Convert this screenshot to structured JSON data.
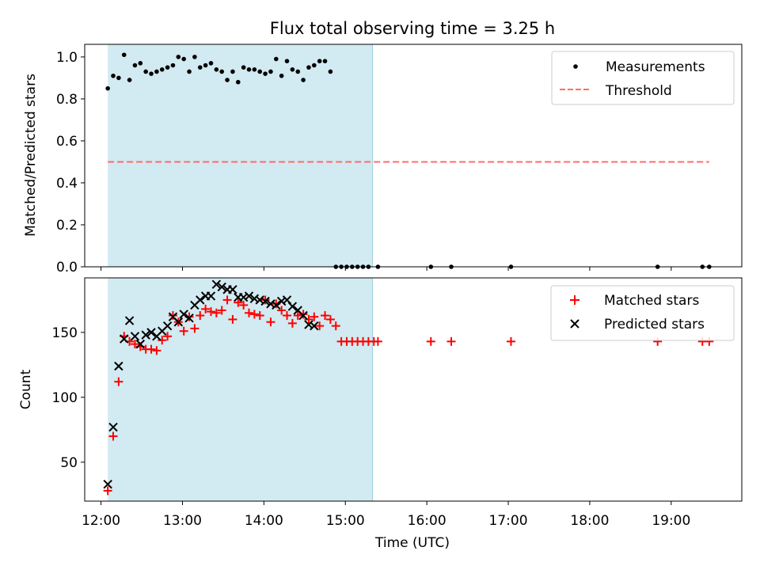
{
  "chart_data": {
    "title": "Flux total observing time = 3.25 h",
    "xlabel": "Time (UTC)",
    "x_ticks": [
      "12:00",
      "13:00",
      "14:00",
      "15:00",
      "16:00",
      "17:00",
      "18:00",
      "19:00"
    ],
    "x_range": [
      "11:48",
      "19:52"
    ],
    "shaded_window": {
      "start": "12:05",
      "end": "15:20",
      "color": "#add8e6"
    },
    "panels": [
      {
        "type": "scatter",
        "ylabel": "Matched/Predicted stars",
        "ylim": [
          0,
          1.06
        ],
        "y_ticks": [
          0.0,
          0.2,
          0.4,
          0.6,
          0.8,
          1.0
        ],
        "y_tick_labels": [
          "0.0",
          "0.2",
          "0.4",
          "0.6",
          "0.8",
          "1.0"
        ],
        "legend_position": "upper right",
        "series": [
          {
            "name": "Measurements",
            "marker": "dot",
            "color": "#000000",
            "x": [
              "12:05",
              "12:09",
              "12:13",
              "12:17",
              "12:21",
              "12:25",
              "12:29",
              "12:33",
              "12:37",
              "12:41",
              "12:45",
              "12:49",
              "12:53",
              "12:57",
              "13:01",
              "13:05",
              "13:09",
              "13:13",
              "13:17",
              "13:21",
              "13:25",
              "13:29",
              "13:33",
              "13:37",
              "13:41",
              "13:45",
              "13:49",
              "13:53",
              "13:57",
              "14:01",
              "14:05",
              "14:09",
              "14:13",
              "14:17",
              "14:21",
              "14:25",
              "14:29",
              "14:33",
              "14:37",
              "14:41",
              "14:45",
              "14:49",
              "14:53",
              "14:57",
              "15:01",
              "15:05",
              "15:09",
              "15:13",
              "15:17",
              "15:24",
              "16:03",
              "16:18",
              "17:02",
              "18:50",
              "19:23",
              "19:28"
            ],
            "y": [
              0.85,
              0.91,
              0.9,
              1.01,
              0.89,
              0.96,
              0.97,
              0.93,
              0.92,
              0.93,
              0.94,
              0.95,
              0.96,
              1.0,
              0.99,
              0.93,
              1.0,
              0.95,
              0.96,
              0.97,
              0.94,
              0.93,
              0.89,
              0.93,
              0.88,
              0.95,
              0.94,
              0.94,
              0.93,
              0.92,
              0.93,
              0.99,
              0.91,
              0.98,
              0.94,
              0.93,
              0.89,
              0.95,
              0.96,
              0.98,
              0.98,
              0.93,
              0,
              0,
              0,
              0,
              0,
              0,
              0,
              0,
              0,
              0,
              0,
              0,
              0,
              0
            ]
          },
          {
            "name": "Threshold",
            "marker": "dashed-line",
            "color": "#ff6b6b",
            "x": [
              "12:05",
              "19:28"
            ],
            "y": [
              0.5,
              0.5
            ]
          }
        ]
      },
      {
        "type": "scatter",
        "ylabel": "Count",
        "ylim": [
          20,
          192
        ],
        "y_ticks": [
          50,
          100,
          150
        ],
        "y_tick_labels": [
          "50",
          "100",
          "150"
        ],
        "legend_position": "upper right",
        "series": [
          {
            "name": "Matched stars",
            "marker": "plus",
            "color": "#ff0000",
            "x": [
              "12:05",
              "12:09",
              "12:13",
              "12:17",
              "12:21",
              "12:25",
              "12:29",
              "12:33",
              "12:37",
              "12:41",
              "12:45",
              "12:49",
              "12:53",
              "12:57",
              "13:01",
              "13:05",
              "13:09",
              "13:13",
              "13:17",
              "13:21",
              "13:25",
              "13:29",
              "13:33",
              "13:37",
              "13:41",
              "13:45",
              "13:49",
              "13:53",
              "13:57",
              "14:01",
              "14:05",
              "14:09",
              "14:13",
              "14:17",
              "14:21",
              "14:25",
              "14:29",
              "14:33",
              "14:37",
              "14:41",
              "14:45",
              "14:49",
              "14:53",
              "14:57",
              "15:01",
              "15:05",
              "15:09",
              "15:13",
              "15:17",
              "15:21",
              "15:24",
              "16:03",
              "16:18",
              "17:02",
              "18:50",
              "19:23",
              "19:28"
            ],
            "y": [
              28,
              70,
              112,
              147,
              143,
              141,
              139,
              137,
              137,
              136,
              144,
              147,
              163,
              158,
              151,
              162,
              153,
              163,
              168,
              166,
              165,
              167,
              175,
              160,
              173,
              171,
              165,
              164,
              163,
              175,
              158,
              172,
              167,
              163,
              157,
              163,
              164,
              160,
              162,
              155,
              163,
              160,
              155,
              143,
              143,
              143,
              143,
              143,
              143,
              143,
              143,
              143,
              143,
              143,
              143,
              143,
              143
            ]
          },
          {
            "name": "Predicted stars",
            "marker": "x",
            "color": "#000000",
            "x": [
              "12:05",
              "12:09",
              "12:13",
              "12:17",
              "12:21",
              "12:25",
              "12:29",
              "12:33",
              "12:37",
              "12:41",
              "12:45",
              "12:49",
              "12:53",
              "12:57",
              "13:01",
              "13:05",
              "13:09",
              "13:13",
              "13:17",
              "13:21",
              "13:25",
              "13:29",
              "13:33",
              "13:37",
              "13:41",
              "13:45",
              "13:49",
              "13:53",
              "13:57",
              "14:01",
              "14:05",
              "14:09",
              "14:13",
              "14:17",
              "14:21",
              "14:25",
              "14:29",
              "14:33",
              "14:37",
              "14:41",
              "14:45",
              "14:49",
              "14:53",
              "14:57",
              "15:01",
              "15:05",
              "15:09",
              "15:13",
              "15:17"
            ],
            "y": [
              33,
              77,
              124,
              145,
              159,
              147,
              141,
              148,
              150,
              147,
              151,
              155,
              162,
              158,
              164,
              161,
              171,
              175,
              178,
              178,
              187,
              185,
              183,
              183,
              177,
              177,
              178,
              176,
              175,
              174,
              172,
              171,
              174,
              175,
              170,
              167,
              163,
              156,
              155,
              null,
              null,
              null,
              null,
              null,
              null,
              null,
              null,
              null,
              null
            ]
          }
        ]
      }
    ]
  }
}
